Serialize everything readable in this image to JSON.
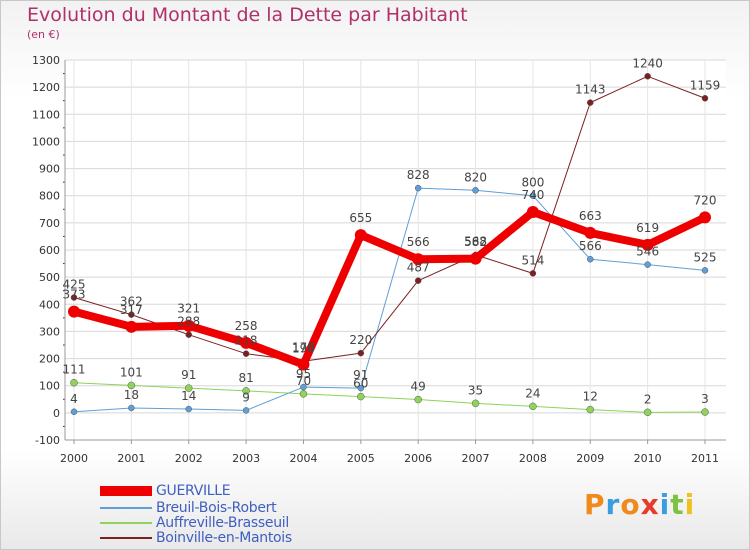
{
  "title": "Evolution du Montant de la Dette par Habitant",
  "subtitle": "(en €)",
  "chart_data": {
    "type": "line",
    "x": [
      "2000",
      "2001",
      "2002",
      "2003",
      "2004",
      "2005",
      "2006",
      "2007",
      "2008",
      "2009",
      "2010",
      "2011"
    ],
    "ylim": [
      -100,
      1300
    ],
    "yticks": [
      "-100",
      "0",
      "100",
      "200",
      "300",
      "400",
      "500",
      "600",
      "700",
      "800",
      "900",
      "1000",
      "1100",
      "1200",
      "1300"
    ],
    "grid": true,
    "legend_position": "bottom-left",
    "series": [
      {
        "name": "GUERVILLE",
        "color": "#ee0000",
        "values": [
          373,
          317,
          321,
          258,
          178,
          655,
          566,
          568,
          740,
          663,
          619,
          720
        ],
        "labels": [
          "373",
          "317",
          "321",
          "258",
          "178",
          "655",
          "566",
          "568",
          "740",
          "663",
          "619",
          "720"
        ]
      },
      {
        "name": "Breuil-Bois-Robert",
        "color": "#5f9fd7",
        "values": [
          4,
          18,
          14,
          9,
          95,
          91,
          828,
          820,
          800,
          566,
          546,
          525
        ],
        "labels": [
          "4",
          "18",
          "14",
          "9",
          "95",
          "91",
          "828",
          "820",
          "800",
          "566",
          "546",
          "525"
        ]
      },
      {
        "name": "Auffreville-Brasseuil",
        "color": "#8fd35a",
        "values": [
          111,
          101,
          91,
          81,
          70,
          60,
          49,
          35,
          24,
          12,
          2,
          3
        ],
        "labels": [
          "111",
          "101",
          "91",
          "81",
          "70",
          "60",
          "49",
          "35",
          "24",
          "12",
          "2",
          "3"
        ]
      },
      {
        "name": "Boinville-en-Mantois",
        "color": "#7a2020",
        "values": [
          425,
          362,
          288,
          218,
          190,
          220,
          487,
          582,
          514,
          1143,
          1240,
          1159
        ],
        "labels": [
          "425",
          "362",
          "288",
          "218",
          "190",
          "220",
          "487",
          "582",
          "514",
          "1143",
          "1240",
          "1159"
        ]
      }
    ]
  },
  "logo": {
    "letters": [
      "P",
      "r",
      "o",
      "x",
      "i",
      "t",
      "i"
    ],
    "colors": [
      "#f08a1c",
      "#3a9de0",
      "#f08a1c",
      "#e83a2a",
      "#3a9de0",
      "#7cc243",
      "#f0c020"
    ]
  }
}
